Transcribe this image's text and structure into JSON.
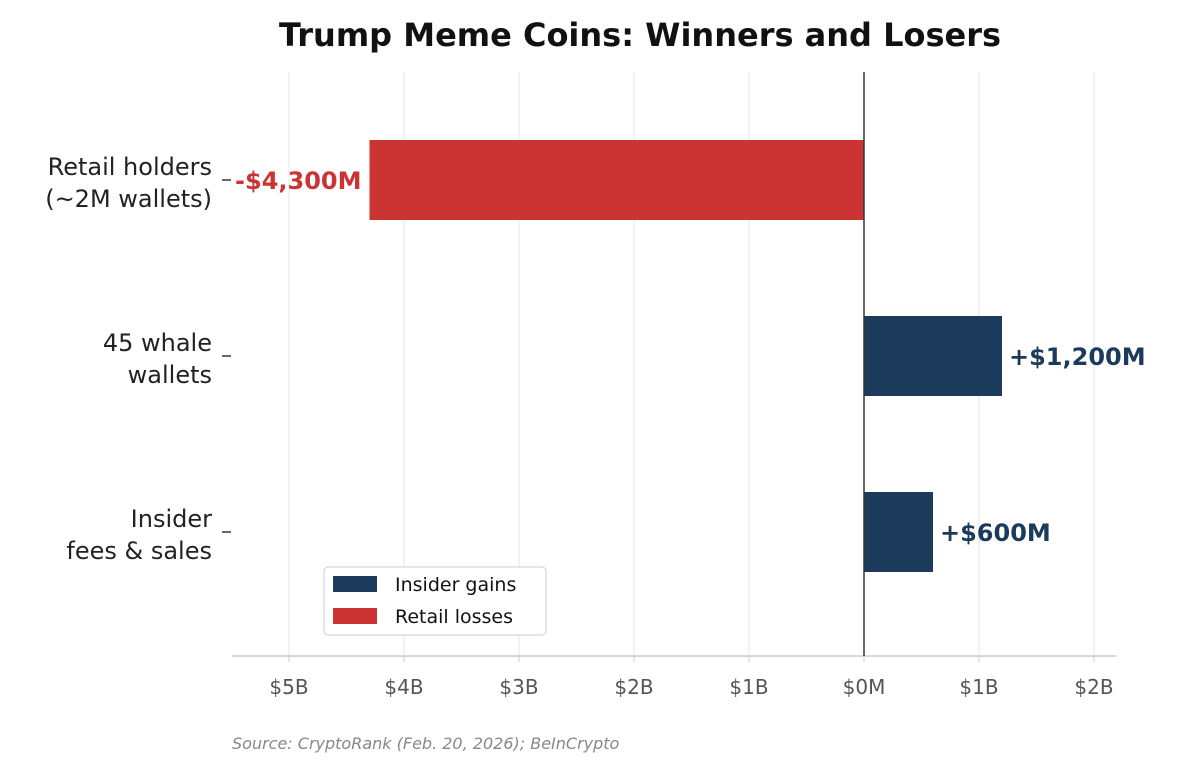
{
  "chart_data": {
    "type": "bar",
    "orientation": "horizontal",
    "title": "Trump Meme Coins: Winners and Losers",
    "categories": [
      "Retail holders\n(~2M wallets)",
      "45 whale\nwallets",
      "Insider\nfees & sales"
    ],
    "values": [
      -4300,
      1200,
      600
    ],
    "value_unit": "$M",
    "data_labels": [
      "-$4,300M",
      "+$1,200M",
      "+$600M"
    ],
    "series_assignment": [
      "Retail losses",
      "Insider gains",
      "Insider gains"
    ],
    "series": [
      {
        "name": "Insider gains",
        "color": "#1b3a5c"
      },
      {
        "name": "Retail losses",
        "color": "#cc3333"
      }
    ],
    "x_ticks": [
      {
        "value": -5000,
        "label": "$5B"
      },
      {
        "value": -4000,
        "label": "$4B"
      },
      {
        "value": -3000,
        "label": "$3B"
      },
      {
        "value": -2000,
        "label": "$2B"
      },
      {
        "value": -1000,
        "label": "$1B"
      },
      {
        "value": 0,
        "label": "$0M"
      },
      {
        "value": 1000,
        "label": "$1B"
      },
      {
        "value": 2000,
        "label": "$2B"
      }
    ],
    "xlim": [
      -5500,
      2200
    ],
    "xlabel": "",
    "ylabel": "",
    "grid": "vertical",
    "legend": "lower-left",
    "source": "Source: CryptoRank (Feb. 20, 2026); BeInCrypto"
  }
}
